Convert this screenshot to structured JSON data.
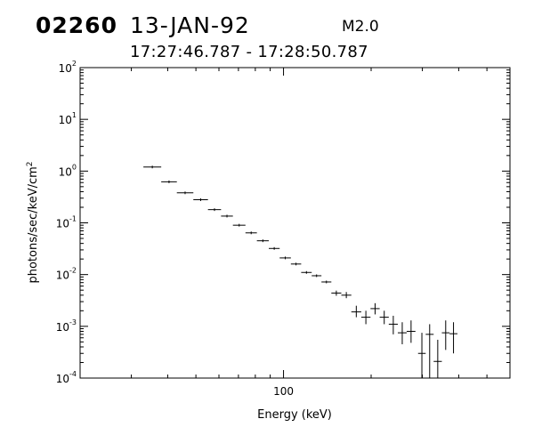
{
  "header": {
    "flare_id": "02260",
    "date": "13-JAN-92",
    "goes_class": "M2.0",
    "time_range": "17:27:46.787 - 17:28:50.787"
  },
  "chart_data": {
    "type": "scatter",
    "style": "crosses with horizontal energy-bin bars and vertical error bars",
    "xlabel": "Energy (keV)",
    "ylabel": "photons/sec/keV/cm",
    "ylabel_superscript": "2",
    "xscale": "log",
    "yscale": "log",
    "xlim": [
      20,
      600
    ],
    "ylim": [
      0.0001,
      100
    ],
    "x_tick_labels": [
      {
        "value": 100,
        "label": "100"
      }
    ],
    "y_tick_labels": [
      {
        "value": 100,
        "base": "10",
        "exp": "2"
      },
      {
        "value": 10,
        "base": "10",
        "exp": "1"
      },
      {
        "value": 1,
        "base": "10",
        "exp": "0"
      },
      {
        "value": 0.1,
        "base": "10",
        "exp": "-1"
      },
      {
        "value": 0.01,
        "base": "10",
        "exp": "-2"
      },
      {
        "value": 0.001,
        "base": "10",
        "exp": "-3"
      },
      {
        "value": 0.0001,
        "base": "10",
        "exp": "-4"
      }
    ],
    "grid": false,
    "points": [
      {
        "x0": 33.0,
        "x1": 38.0,
        "y": 1.2
      },
      {
        "x0": 38.0,
        "x1": 43.0,
        "y": 0.62
      },
      {
        "x0": 43.0,
        "x1": 49.0,
        "y": 0.38
      },
      {
        "x0": 49.0,
        "x1": 55.0,
        "y": 0.28
      },
      {
        "x0": 55.0,
        "x1": 61.0,
        "y": 0.18
      },
      {
        "x0": 61.0,
        "x1": 67.0,
        "y": 0.135
      },
      {
        "x0": 67.0,
        "x1": 74.0,
        "y": 0.09
      },
      {
        "x0": 74.0,
        "x1": 81.0,
        "y": 0.064
      },
      {
        "x0": 81.0,
        "x1": 89.0,
        "y": 0.045
      },
      {
        "x0": 89.0,
        "x1": 97.0,
        "y": 0.032
      },
      {
        "x0": 97.0,
        "x1": 106.0,
        "y": 0.021
      },
      {
        "x0": 106.0,
        "x1": 115.0,
        "y": 0.016
      },
      {
        "x0": 115.0,
        "x1": 125.0,
        "y": 0.011
      },
      {
        "x0": 125.0,
        "x1": 135.0,
        "y": 0.0095
      },
      {
        "x0": 135.0,
        "x1": 146.0,
        "y": 0.0072
      },
      {
        "x0": 146.0,
        "x1": 158.0,
        "y": 0.0044,
        "ylo": 0.0039,
        "yhi": 0.0049
      },
      {
        "x0": 158.0,
        "x1": 171.0,
        "y": 0.004,
        "ylo": 0.0035,
        "yhi": 0.0046
      },
      {
        "x0": 171.0,
        "x1": 185.0,
        "y": 0.0019,
        "ylo": 0.0015,
        "yhi": 0.0025
      },
      {
        "x0": 185.0,
        "x1": 199.0,
        "y": 0.0015,
        "ylo": 0.0011,
        "yhi": 0.002
      },
      {
        "x0": 199.0,
        "x1": 214.0,
        "y": 0.0022,
        "ylo": 0.0017,
        "yhi": 0.0028
      },
      {
        "x0": 214.0,
        "x1": 230.0,
        "y": 0.0015,
        "ylo": 0.0011,
        "yhi": 0.002
      },
      {
        "x0": 230.0,
        "x1": 247.0,
        "y": 0.0011,
        "ylo": 0.0007,
        "yhi": 0.0016
      },
      {
        "x0": 247.0,
        "x1": 265.0,
        "y": 0.00075,
        "ylo": 0.00045,
        "yhi": 0.0012
      },
      {
        "x0": 265.0,
        "x1": 284.0,
        "y": 0.0008,
        "ylo": 0.00048,
        "yhi": 0.0013
      },
      {
        "x0": 290.0,
        "x1": 308.0,
        "y": 0.0003,
        "ylo": 0.0001,
        "yhi": 0.00075
      },
      {
        "x0": 308.0,
        "x1": 328.0,
        "y": 0.0007,
        "ylo": 0.0001,
        "yhi": 0.0011
      },
      {
        "x0": 328.0,
        "x1": 350.0,
        "y": 0.00021,
        "ylo": 0.0001,
        "yhi": 0.00055
      },
      {
        "x0": 350.0,
        "x1": 372.0,
        "y": 0.00075,
        "ylo": 0.00035,
        "yhi": 0.0013
      },
      {
        "x0": 372.0,
        "x1": 396.0,
        "y": 0.00072,
        "ylo": 0.0003,
        "yhi": 0.0012
      }
    ]
  }
}
